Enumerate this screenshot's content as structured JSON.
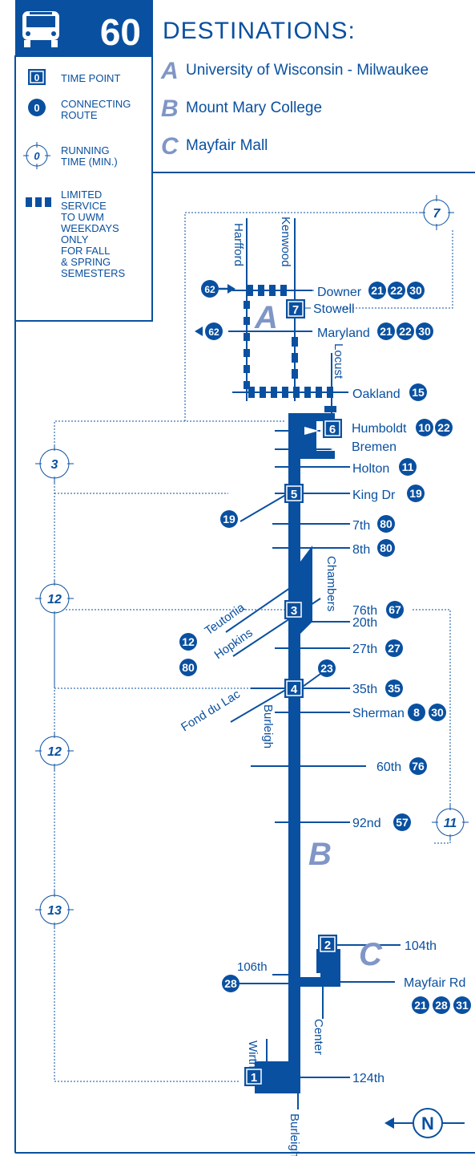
{
  "header": {
    "route_number": "60",
    "title": "DESTINATIONS:",
    "icon": "bus-icon"
  },
  "destinations": [
    {
      "letter": "A",
      "name": "University of Wisconsin - Milwaukee"
    },
    {
      "letter": "B",
      "name": "Mount Mary College"
    },
    {
      "letter": "C",
      "name": "Mayfair Mall"
    }
  ],
  "legend": {
    "time_point": {
      "symbol": "0",
      "label_lines": [
        "TIME POINT"
      ]
    },
    "connecting_route": {
      "symbol": "0",
      "label_lines": [
        "CONNECTING",
        "ROUTE"
      ]
    },
    "running_time": {
      "symbol": "0",
      "label_lines": [
        "RUNNING",
        "TIME (MIN.)"
      ]
    },
    "limited_service": {
      "label_lines": [
        "LIMITED",
        "SERVICE",
        "TO UWM",
        "WEEKDAYS",
        "ONLY",
        "FOR FALL",
        "& SPRING",
        "SEMESTERS"
      ]
    }
  },
  "time_points": [
    "7",
    "6",
    "5",
    "4",
    "3",
    "2",
    "1"
  ],
  "stops": [
    {
      "name": "Downer",
      "routes": [
        "21",
        "22",
        "30"
      ]
    },
    {
      "name": "Stowell",
      "routes": []
    },
    {
      "name": "Maryland",
      "routes": [
        "21",
        "22",
        "30"
      ]
    },
    {
      "name": "Oakland",
      "routes": [
        "15"
      ]
    },
    {
      "name": "Humboldt",
      "routes": [
        "10",
        "22"
      ]
    },
    {
      "name": "Bremen",
      "routes": []
    },
    {
      "name": "Holton",
      "routes": [
        "11"
      ]
    },
    {
      "name": "King Dr",
      "routes": [
        "19"
      ]
    },
    {
      "name": "7th",
      "routes": [
        "80"
      ]
    },
    {
      "name": "8th",
      "routes": [
        "80"
      ]
    },
    {
      "name": "20th",
      "routes": []
    },
    {
      "name": "27th",
      "routes": [
        "27"
      ]
    },
    {
      "name": "35th",
      "routes": [
        "35"
      ]
    },
    {
      "name": "Sherman",
      "routes": [
        "8",
        "30"
      ]
    },
    {
      "name": "60th",
      "routes": [
        "76"
      ]
    },
    {
      "name": "76th",
      "routes": [
        "67"
      ]
    },
    {
      "name": "92nd",
      "routes": [
        "57"
      ]
    },
    {
      "name": "104th",
      "routes": []
    },
    {
      "name": "Mayfair Rd",
      "routes": [
        "21",
        "28",
        "31"
      ]
    },
    {
      "name": "124th",
      "routes": []
    }
  ],
  "left_streets": {
    "teutonia": {
      "name": "Teutonia",
      "route": "12"
    },
    "hopkins": {
      "name": "Hopkins",
      "route": "80"
    },
    "fond_du_lac": {
      "name": "Fond du Lac",
      "route": "23"
    },
    "sixth_106": {
      "name": "106th",
      "route": "28"
    },
    "king_connect": "19",
    "arrow_out": "62",
    "arrow_in": "62"
  },
  "vertical_streets": [
    "Harfford",
    "Kenwood",
    "Locust",
    "Chambers",
    "Burleigh",
    "Center",
    "Wirth",
    "Burleigh"
  ],
  "running_times": [
    "7",
    "3",
    "12",
    "12",
    "13",
    "11"
  ],
  "zone_letters": [
    "A",
    "B",
    "C"
  ],
  "north": "N",
  "colors": {
    "primary": "#0a50a0",
    "zone_letter": "#7f96c6",
    "background": "#ffffff"
  }
}
